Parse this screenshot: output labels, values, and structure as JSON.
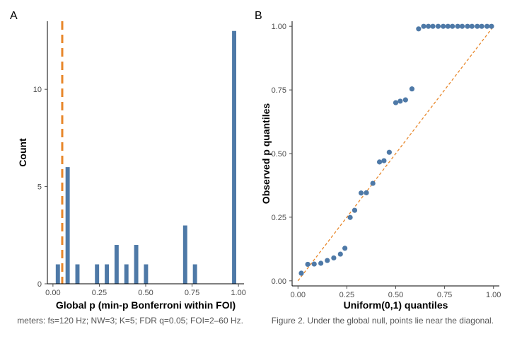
{
  "colors": {
    "bar": "#4e79a7",
    "point": "#4e79a7",
    "reference": "#e8872a",
    "axis": "#000000",
    "tick": "#4d4d4d"
  },
  "chart_data": [
    {
      "panel": "A",
      "type": "bar",
      "xlabel": "Global p (min-p Bonferroni within FOI)",
      "ylabel": "Count",
      "xlim": [
        -0.03,
        1.03
      ],
      "ylim": [
        0,
        13.5
      ],
      "x_ticks": [
        0.0,
        0.25,
        0.5,
        0.75,
        1.0
      ],
      "x_tick_labels": [
        "0.00",
        "0.25",
        "0.50",
        "0.75",
        "1.00"
      ],
      "y_ticks": [
        0,
        5,
        10
      ],
      "y_tick_labels": [
        "0",
        "5",
        "10"
      ],
      "bin_width": 0.0264,
      "bins": [
        {
          "x": 0.0264,
          "count": 1
        },
        {
          "x": 0.0792,
          "count": 6
        },
        {
          "x": 0.132,
          "count": 1
        },
        {
          "x": 0.2376,
          "count": 1
        },
        {
          "x": 0.2904,
          "count": 1
        },
        {
          "x": 0.3432,
          "count": 2
        },
        {
          "x": 0.396,
          "count": 1
        },
        {
          "x": 0.4488,
          "count": 2
        },
        {
          "x": 0.5016,
          "count": 1
        },
        {
          "x": 0.7128,
          "count": 3
        },
        {
          "x": 0.7656,
          "count": 1
        },
        {
          "x": 0.9768,
          "count": 13
        }
      ],
      "reference_line": {
        "x": 0.05,
        "style": "dashed"
      },
      "grid": false,
      "caption": "meters: fs=120 Hz; NW=3; K=5; FDR q=0.05; FOI=2–60 Hz."
    },
    {
      "panel": "B",
      "type": "scatter",
      "xlabel": "Uniform(0,1) quantiles",
      "ylabel": "Observed p quantiles",
      "xlim": [
        -0.03,
        1.03
      ],
      "ylim": [
        -0.02,
        1.02
      ],
      "x_ticks": [
        0.0,
        0.25,
        0.5,
        0.75,
        1.0
      ],
      "x_tick_labels": [
        "0.00",
        "0.25",
        "0.50",
        "0.75",
        "1.00"
      ],
      "y_ticks": [
        0.0,
        0.25,
        0.5,
        0.75,
        1.0
      ],
      "y_tick_labels": [
        "0.00",
        "0.25",
        "0.50",
        "0.75",
        "1.00"
      ],
      "points": [
        [
          0.017,
          0.03
        ],
        [
          0.05,
          0.065
        ],
        [
          0.083,
          0.066
        ],
        [
          0.117,
          0.069
        ],
        [
          0.15,
          0.08
        ],
        [
          0.183,
          0.09
        ],
        [
          0.217,
          0.105
        ],
        [
          0.24,
          0.128
        ],
        [
          0.267,
          0.249
        ],
        [
          0.29,
          0.277
        ],
        [
          0.323,
          0.345
        ],
        [
          0.35,
          0.346
        ],
        [
          0.383,
          0.383
        ],
        [
          0.417,
          0.467
        ],
        [
          0.44,
          0.472
        ],
        [
          0.467,
          0.505
        ],
        [
          0.5,
          0.7
        ],
        [
          0.523,
          0.706
        ],
        [
          0.55,
          0.711
        ],
        [
          0.583,
          0.754
        ],
        [
          0.617,
          0.99
        ],
        [
          0.643,
          1.0
        ],
        [
          0.667,
          1.0
        ],
        [
          0.69,
          1.0
        ],
        [
          0.717,
          1.0
        ],
        [
          0.743,
          1.0
        ],
        [
          0.767,
          1.0
        ],
        [
          0.79,
          1.0
        ],
        [
          0.817,
          1.0
        ],
        [
          0.84,
          1.0
        ],
        [
          0.867,
          1.0
        ],
        [
          0.89,
          1.0
        ],
        [
          0.917,
          1.0
        ],
        [
          0.94,
          1.0
        ],
        [
          0.967,
          1.0
        ],
        [
          0.99,
          1.0
        ]
      ],
      "reference_line": {
        "from": [
          0,
          0
        ],
        "to": [
          1,
          1
        ],
        "style": "dashed"
      },
      "grid": false,
      "caption": "Figure 2. Under the global null, points lie near the diagonal."
    }
  ]
}
